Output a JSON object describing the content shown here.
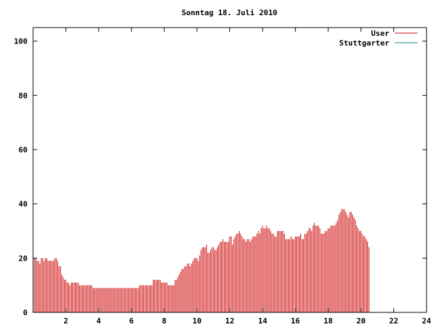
{
  "chart_data": {
    "type": "bar",
    "title": "Sonntag 18. Juli 2010",
    "xlabel": "",
    "ylabel": "",
    "xlim": [
      0,
      24
    ],
    "ylim": [
      0,
      105
    ],
    "xticks": [
      2,
      4,
      6,
      8,
      10,
      12,
      14,
      16,
      18,
      20,
      22,
      24
    ],
    "yticks": [
      0,
      20,
      40,
      60,
      80,
      100
    ],
    "grid": false,
    "legend_position": "top-right",
    "legend": [
      {
        "label": "User",
        "color": "#cc0000"
      },
      {
        "label": "Stuttgarter",
        "color": "#008b8b"
      }
    ],
    "series": [
      {
        "name": "User",
        "color": "#cc0000",
        "x_start": 0,
        "x_step": 0.0833,
        "values": [
          20,
          20,
          20,
          19,
          19,
          18,
          20,
          20,
          19,
          20,
          20,
          19,
          19,
          19,
          19,
          19,
          20,
          20,
          19,
          17,
          17,
          14,
          13,
          12,
          12,
          11,
          11,
          10,
          11,
          11,
          11,
          11,
          11,
          11,
          10,
          10,
          10,
          10,
          10,
          10,
          10,
          10,
          10,
          10,
          9,
          9,
          9,
          9,
          9,
          9,
          9,
          9,
          9,
          9,
          9,
          9,
          9,
          9,
          9,
          9,
          9,
          9,
          9,
          9,
          9,
          9,
          9,
          9,
          9,
          9,
          9,
          9,
          9,
          9,
          9,
          9,
          9,
          9,
          10,
          10,
          10,
          10,
          10,
          10,
          10,
          10,
          10,
          10,
          12,
          12,
          12,
          12,
          12,
          12,
          11,
          11,
          11,
          11,
          11,
          10,
          10,
          10,
          10,
          10,
          12,
          12,
          13,
          14,
          15,
          16,
          16,
          17,
          17,
          18,
          18,
          17,
          18,
          19,
          20,
          20,
          20,
          19,
          21,
          23,
          24,
          24,
          24,
          25,
          22,
          22,
          23,
          24,
          24,
          23,
          23,
          24,
          25,
          26,
          26,
          27,
          26,
          26,
          26,
          26,
          28,
          28,
          25,
          27,
          28,
          29,
          29,
          30,
          29,
          28,
          27,
          27,
          26,
          27,
          27,
          26,
          27,
          28,
          28,
          28,
          29,
          30,
          29,
          31,
          32,
          31,
          31,
          32,
          31,
          31,
          30,
          29,
          29,
          28,
          28,
          30,
          30,
          30,
          30,
          30,
          29,
          27,
          27,
          27,
          27,
          28,
          27,
          27,
          28,
          28,
          28,
          28,
          29,
          27,
          27,
          29,
          29,
          30,
          31,
          31,
          30,
          32,
          33,
          32,
          32,
          32,
          31,
          29,
          29,
          29,
          30,
          30,
          31,
          31,
          32,
          32,
          32,
          32,
          33,
          34,
          36,
          37,
          38,
          38,
          38,
          37,
          36,
          35,
          37,
          37,
          36,
          35,
          34,
          32,
          31,
          30,
          30,
          29,
          28,
          28,
          27,
          26,
          24
        ]
      },
      {
        "name": "Stuttgarter",
        "color": "#008b8b",
        "values": []
      }
    ]
  }
}
